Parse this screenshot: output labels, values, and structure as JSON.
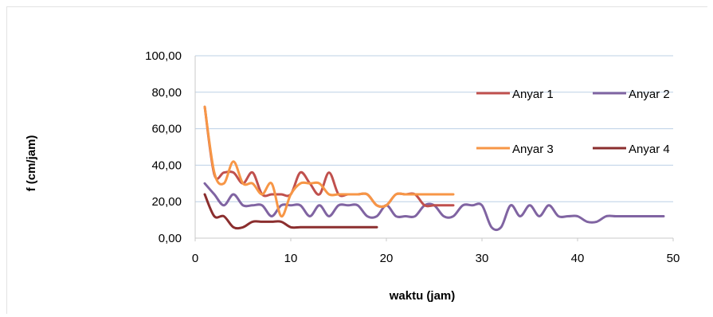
{
  "chart_data": {
    "type": "line",
    "xlabel": "waktu (jam)",
    "ylabel": "f (cm/jam)",
    "xlim": [
      0,
      50
    ],
    "ylim": [
      0,
      100
    ],
    "x_ticks": [
      "0",
      "10",
      "20",
      "30",
      "40",
      "50"
    ],
    "y_ticks": [
      "0,00",
      "20,00",
      "40,00",
      "60,00",
      "80,00",
      "100,00"
    ],
    "grid": "horizontal",
    "legend_position": "right",
    "series": [
      {
        "name": "Anyar 1",
        "color": "#c0504d",
        "x": [
          1,
          2,
          3,
          4,
          5,
          6,
          7,
          8,
          9,
          10,
          11,
          12,
          13,
          14,
          15,
          16,
          17,
          18,
          19,
          20,
          21,
          22,
          23,
          24,
          25,
          26,
          27
        ],
        "y": [
          72,
          35,
          36,
          36,
          30,
          36,
          24,
          24,
          24,
          24,
          36,
          30,
          24,
          36,
          24,
          24,
          24,
          24,
          18,
          18,
          24,
          24,
          24,
          18,
          18,
          18,
          18
        ]
      },
      {
        "name": "Anyar 2",
        "color": "#8064a2",
        "x": [
          1,
          2,
          3,
          4,
          5,
          6,
          7,
          8,
          9,
          10,
          11,
          12,
          13,
          14,
          15,
          16,
          17,
          18,
          19,
          20,
          21,
          22,
          23,
          24,
          25,
          26,
          27,
          28,
          29,
          30,
          31,
          32,
          33,
          34,
          35,
          36,
          37,
          38,
          39,
          40,
          41,
          42,
          43,
          44,
          45,
          46,
          47,
          48,
          49
        ],
        "y": [
          30,
          24,
          18,
          24,
          18,
          18,
          18,
          12,
          18,
          18,
          18,
          12,
          18,
          12,
          18,
          18,
          18,
          12,
          12,
          18,
          12,
          12,
          12,
          18,
          18,
          12,
          12,
          18,
          18,
          18,
          6,
          6,
          18,
          12,
          18,
          12,
          18,
          12,
          12,
          12,
          9,
          9,
          12,
          12,
          12,
          12,
          12,
          12,
          12
        ]
      },
      {
        "name": "Anyar 3",
        "color": "#f79646",
        "x": [
          1,
          2,
          3,
          4,
          5,
          6,
          7,
          8,
          9,
          10,
          11,
          12,
          13,
          14,
          15,
          16,
          17,
          18,
          19,
          20,
          21,
          22,
          23,
          24,
          25,
          26,
          27
        ],
        "y": [
          72,
          36,
          30,
          42,
          30,
          30,
          24,
          30,
          12,
          24,
          30,
          30,
          30,
          24,
          24,
          24,
          24,
          24,
          18,
          18,
          24,
          24,
          24,
          24,
          24,
          24,
          24
        ]
      },
      {
        "name": "Anyar 4",
        "color": "#8b2e2e",
        "x": [
          1,
          2,
          3,
          4,
          5,
          6,
          7,
          8,
          9,
          10,
          11,
          12,
          13,
          14,
          15,
          16,
          17,
          18,
          19
        ],
        "y": [
          24,
          12,
          12,
          6,
          6,
          9,
          9,
          9,
          9,
          6,
          6,
          6,
          6,
          6,
          6,
          6,
          6,
          6,
          6
        ]
      }
    ]
  }
}
